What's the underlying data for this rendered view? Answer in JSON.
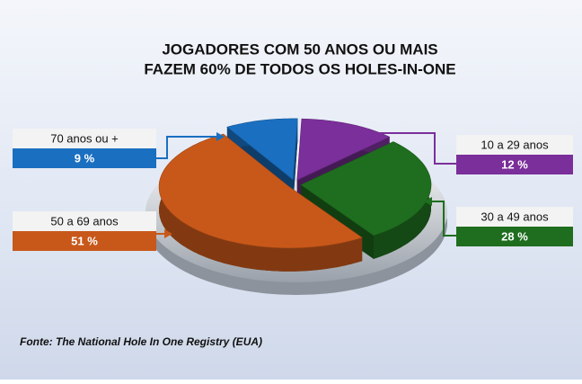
{
  "chart_data": {
    "type": "pie",
    "title": [
      "JOGADORES COM 50 ANOS OU MAIS",
      "FAZEM 60% DE TODOS OS HOLES-IN-ONE"
    ],
    "categories": [
      "10 a 29 anos",
      "30 a 49 anos",
      "50 a 69 anos",
      "70 anos ou +"
    ],
    "values": [
      12,
      28,
      51,
      9
    ],
    "value_labels": [
      "12 %",
      "28 %",
      "51 %",
      "9 %"
    ],
    "colors": [
      "#7b2f9a",
      "#1f6e1f",
      "#c8581a",
      "#1a6fc0"
    ],
    "source": "Fonte: The National Hole In One Registry (EUA)"
  }
}
